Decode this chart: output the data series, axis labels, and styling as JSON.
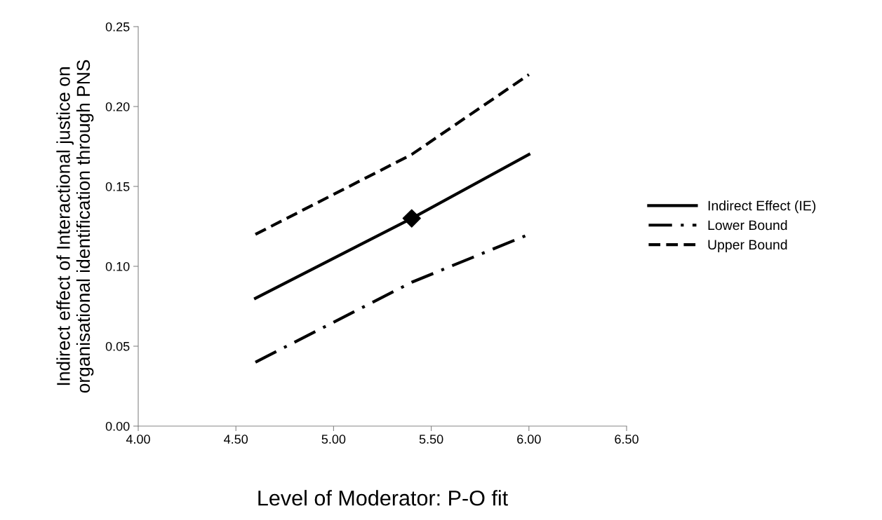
{
  "chart_data": {
    "type": "line",
    "xlabel": "Level of Moderator: P-O fit",
    "ylabel": "Indirect effect of Interactional justice on\norganisational identification through PNS",
    "xlim": [
      4.0,
      6.5
    ],
    "xticks": [
      {
        "value": 4.0,
        "label": "4.00"
      },
      {
        "value": 4.5,
        "label": "4.50"
      },
      {
        "value": 5.0,
        "label": "5.00"
      },
      {
        "value": 5.5,
        "label": "5.50"
      },
      {
        "value": 6.0,
        "label": "6.00"
      },
      {
        "value": 6.5,
        "label": "6.50"
      }
    ],
    "ylim": [
      0,
      0.25
    ],
    "yticks": [
      {
        "value": 0,
        "label": "0.00"
      },
      {
        "value": 0.05,
        "label": "0.05"
      },
      {
        "value": 0.1,
        "label": "0.10"
      },
      {
        "value": 0.15,
        "label": "0.15"
      },
      {
        "value": 0.2,
        "label": "0.20"
      },
      {
        "value": 0.25,
        "label": "0.25"
      }
    ],
    "grid": false,
    "legend": "right",
    "series": [
      {
        "name": "Indirect Effect (IE)",
        "color": "#000000",
        "x": [
          4.6,
          5.4,
          6.0
        ],
        "values": [
          0.08,
          0.13,
          0.17
        ],
        "line_style": "solid"
      },
      {
        "name": "Lower Bound",
        "color": "#000000",
        "x": [
          4.6,
          5.4,
          6.0
        ],
        "values": [
          0.04,
          0.09,
          0.12
        ],
        "line_style": "dashdot"
      },
      {
        "name": "Upper Bound",
        "color": "#000000",
        "x": [
          4.6,
          5.4,
          6.0
        ],
        "values": [
          0.12,
          0.17,
          0.22
        ],
        "line_style": "dashed"
      },
      {
        "type": "scatter",
        "color": "#000000",
        "x": [
          5.4
        ],
        "values": [
          0.13
        ],
        "marker": "diamond"
      }
    ]
  }
}
